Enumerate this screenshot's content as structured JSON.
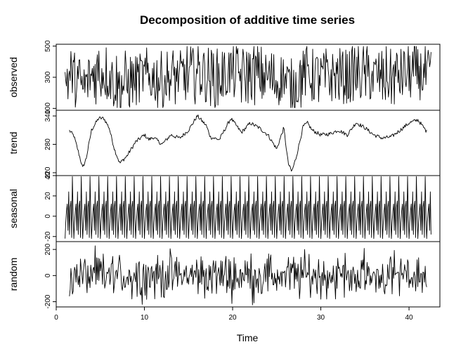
{
  "chart_data": {
    "type": "line",
    "title": "Decomposition of additive time series",
    "xlabel": "Time",
    "xlim": [
      0,
      43.5
    ],
    "x_ticks": [
      "0",
      "10",
      "20",
      "30",
      "40"
    ],
    "x_tick_values": [
      0,
      10,
      20,
      30,
      40
    ],
    "x_start": 1,
    "x_end": 42.5,
    "frequency": 12,
    "grid": false,
    "panels": [
      {
        "name": "observed",
        "ylabel": "observed",
        "ylim": [
          88,
          512
        ],
        "y_ticks": [
          "100",
          "300",
          "500"
        ],
        "y_tick_values": [
          100,
          300,
          500
        ],
        "noise_amplitude": 185,
        "base_level": 300
      },
      {
        "name": "trend",
        "ylabel": "trend",
        "ylim": [
          214,
          352
        ],
        "y_ticks": [
          "220",
          "280",
          "340"
        ],
        "y_tick_values": [
          220,
          280,
          340
        ],
        "trend_x_start": 1.5,
        "trend_x_end": 42,
        "trend_points": [
          [
            1.5,
            309
          ],
          [
            2.0,
            298
          ],
          [
            2.5,
            265
          ],
          [
            3.0,
            230
          ],
          [
            3.4,
            250
          ],
          [
            4.0,
            310
          ],
          [
            4.8,
            335
          ],
          [
            5.4,
            335
          ],
          [
            6.0,
            315
          ],
          [
            6.6,
            270
          ],
          [
            7.2,
            240
          ],
          [
            8.0,
            255
          ],
          [
            9.0,
            285
          ],
          [
            10.0,
            300
          ],
          [
            10.5,
            290
          ],
          [
            11.0,
            295
          ],
          [
            12.0,
            280
          ],
          [
            13.0,
            300
          ],
          [
            14.0,
            293
          ],
          [
            15.0,
            310
          ],
          [
            16.0,
            340
          ],
          [
            17.0,
            320
          ],
          [
            17.5,
            295
          ],
          [
            18.5,
            290
          ],
          [
            19.8,
            335
          ],
          [
            21.0,
            305
          ],
          [
            22.0,
            325
          ],
          [
            23.0,
            315
          ],
          [
            24.0,
            300
          ],
          [
            25.0,
            270
          ],
          [
            25.8,
            315
          ],
          [
            26.3,
            240
          ],
          [
            26.7,
            222
          ],
          [
            27.2,
            252
          ],
          [
            28.0,
            318
          ],
          [
            28.5,
            325
          ],
          [
            29.0,
            310
          ],
          [
            30.0,
            300
          ],
          [
            31.0,
            302
          ],
          [
            32.0,
            310
          ],
          [
            33.0,
            300
          ],
          [
            34.0,
            326
          ],
          [
            35.0,
            315
          ],
          [
            36.0,
            300
          ],
          [
            37.0,
            293
          ],
          [
            38.0,
            296
          ],
          [
            39.0,
            310
          ],
          [
            40.0,
            325
          ],
          [
            41.0,
            332
          ],
          [
            42.0,
            307
          ]
        ]
      },
      {
        "name": "seasonal",
        "ylabel": "seasonal",
        "ylim": [
          -25,
          40
        ],
        "y_ticks": [
          "-20",
          "0",
          "20",
          "40"
        ],
        "y_tick_values": [
          -20,
          0,
          20,
          40
        ],
        "seasonal_pattern": [
          -22,
          -6,
          5,
          12,
          -14,
          24,
          -18,
          9,
          15,
          -21,
          39,
          2
        ]
      },
      {
        "name": "random",
        "ylabel": "random",
        "ylim": [
          -240,
          260
        ],
        "y_ticks": [
          "-200",
          "0",
          "200"
        ],
        "y_tick_values": [
          -200,
          0,
          200
        ],
        "x_start": 1.5,
        "x_end": 42,
        "noise_amplitude": 150
      }
    ]
  }
}
